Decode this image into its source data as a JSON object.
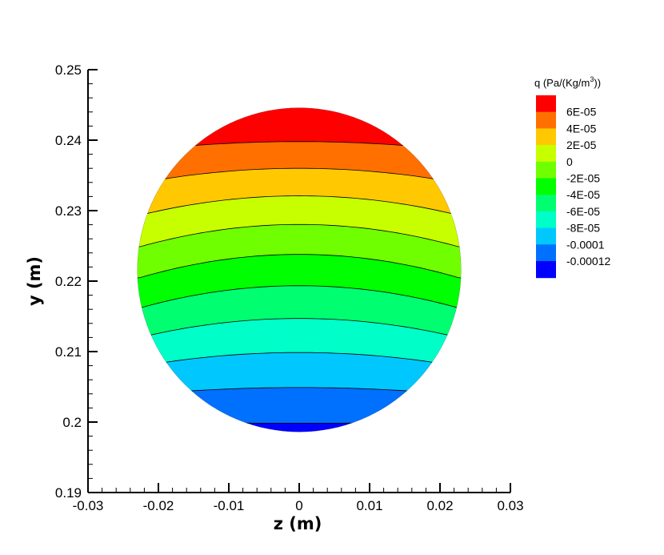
{
  "chart_data": {
    "type": "heatmap",
    "subtype": "filled-contour",
    "xlabel": "z  (m)",
    "ylabel": "y  (m)",
    "xlim": [
      -0.03,
      0.03
    ],
    "ylim": [
      0.19,
      0.25
    ],
    "x_ticks": [
      "-0.03",
      "-0.02",
      "-0.01",
      "0",
      "0.01",
      "0.02",
      "0.03"
    ],
    "y_ticks": [
      "0.19",
      "0.2",
      "0.21",
      "0.22",
      "0.23",
      "0.24",
      "0.25"
    ],
    "domain": {
      "shape": "circle",
      "center_z": 0.0,
      "center_y": 0.2216,
      "radius": 0.023
    },
    "field": {
      "z_max": 0.2428,
      "z_min": 0.1973,
      "center_bias": 0.0034,
      "edge_tilt": 0.0012
    },
    "legend": {
      "title": "q  (Pa/(Kg/m",
      "title_sup": "3",
      "title_end": "))",
      "position": "top-right",
      "levels": [
        "6E-05",
        "4E-05",
        "2E-05",
        "0",
        "-2E-05",
        "-4E-05",
        "-6E-05",
        "-8E-05",
        "-0.0001",
        "-0.00012"
      ],
      "level_values": [
        6e-05,
        4e-05,
        2e-05,
        0,
        -2e-05,
        -4e-05,
        -6e-05,
        -8e-05,
        -0.0001,
        -0.00012
      ],
      "colors": [
        "#ff0000",
        "#ff7000",
        "#ffc800",
        "#c8ff00",
        "#70ff00",
        "#00ff00",
        "#00ff70",
        "#00ffc8",
        "#00c8ff",
        "#0070ff",
        "#0000ff"
      ]
    }
  }
}
